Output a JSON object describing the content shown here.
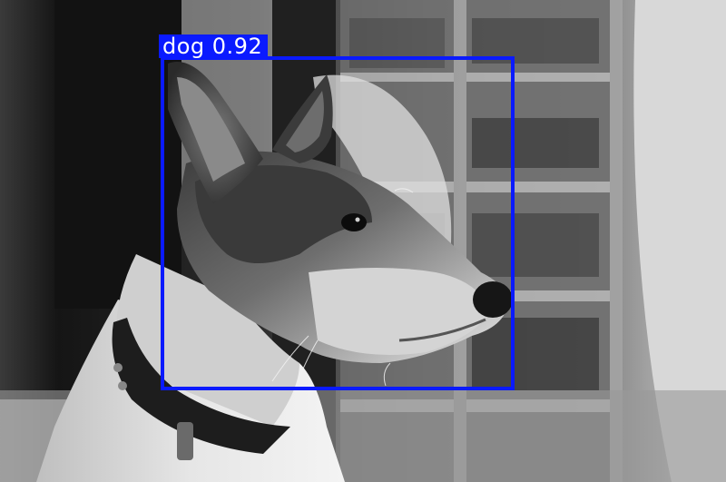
{
  "detections": [
    {
      "label": "dog 0.92",
      "class": "dog",
      "confidence": 0.92,
      "box_color": "#0a1aff",
      "label_text_color": "#ffffff"
    }
  ],
  "image": {
    "description_colors": {
      "background_dark": "#1f1f1f",
      "shelf_gray": "#9a9a9a",
      "dog_light": "#d9d9d9",
      "dog_dark": "#2b2b2b"
    }
  }
}
